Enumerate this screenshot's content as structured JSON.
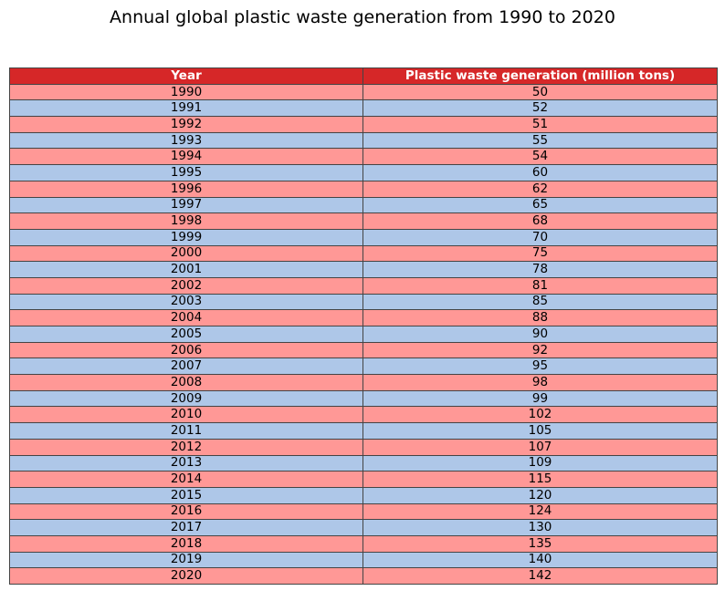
{
  "chart_data": {
    "type": "table",
    "title": "Annual global plastic waste generation from 1990 to 2020",
    "columns": [
      "Year",
      "Plastic waste generation (million tons)"
    ],
    "rows": [
      [
        "1990",
        "50"
      ],
      [
        "1991",
        "52"
      ],
      [
        "1992",
        "51"
      ],
      [
        "1993",
        "55"
      ],
      [
        "1994",
        "54"
      ],
      [
        "1995",
        "60"
      ],
      [
        "1996",
        "62"
      ],
      [
        "1997",
        "65"
      ],
      [
        "1998",
        "68"
      ],
      [
        "1999",
        "70"
      ],
      [
        "2000",
        "75"
      ],
      [
        "2001",
        "78"
      ],
      [
        "2002",
        "81"
      ],
      [
        "2003",
        "85"
      ],
      [
        "2004",
        "88"
      ],
      [
        "2005",
        "90"
      ],
      [
        "2006",
        "92"
      ],
      [
        "2007",
        "95"
      ],
      [
        "2008",
        "98"
      ],
      [
        "2009",
        "99"
      ],
      [
        "2010",
        "102"
      ],
      [
        "2011",
        "105"
      ],
      [
        "2012",
        "107"
      ],
      [
        "2013",
        "109"
      ],
      [
        "2014",
        "115"
      ],
      [
        "2015",
        "120"
      ],
      [
        "2016",
        "124"
      ],
      [
        "2017",
        "130"
      ],
      [
        "2018",
        "135"
      ],
      [
        "2019",
        "140"
      ],
      [
        "2020",
        "142"
      ]
    ],
    "colors": {
      "header": "#d62728",
      "row_odd": "#ff9896",
      "row_even": "#aec7e8",
      "border": "#444444"
    }
  }
}
